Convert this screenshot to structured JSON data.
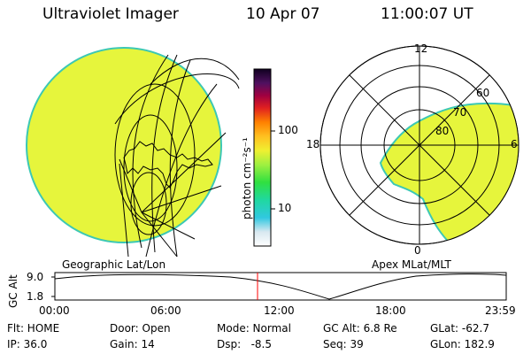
{
  "header": {
    "title": "Ultraviolet Imager",
    "date": "10 Apr 07",
    "time": "11:00:07 UT"
  },
  "colorbar": {
    "unit_label": "photon cm⁻²s⁻¹",
    "ticks": [
      "100",
      "10"
    ]
  },
  "panels": {
    "left_label": "Geographic Lat/Lon",
    "right_label": "Apex MLat/MLT"
  },
  "polar": {
    "mlt_labels": [
      "12",
      "18",
      "6",
      "0"
    ],
    "mlat_labels": [
      "60",
      "70",
      "80"
    ]
  },
  "altitude_plot": {
    "ylabel": "GC Alt",
    "yticks": [
      "9.0",
      "1.8"
    ],
    "xticks": [
      "00:00",
      "06:00",
      "12:00",
      "18:00",
      "23:59"
    ]
  },
  "status": {
    "flt": "Flt: HOME",
    "ip": "IP: 36.0",
    "door": "Door: Open",
    "gain": "Gain: 14",
    "mode": "Mode: Normal",
    "dsp": "Dsp:   -8.5",
    "gc_alt": "GC Alt: 6.8 Re",
    "seq": "Seq: 39",
    "glat": "GLat: -62.7",
    "glon": "GLon: 182.9"
  },
  "colors": {
    "image_fill": "#e6f53c",
    "image_edge": "#3cc8b4",
    "marker": "#ff0000"
  }
}
